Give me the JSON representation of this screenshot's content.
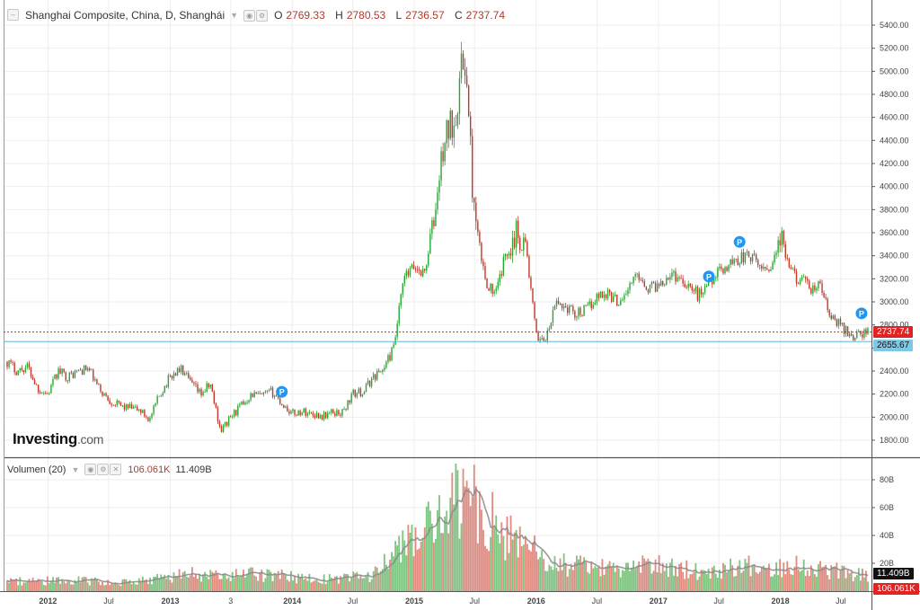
{
  "legend": {
    "symbol_title": "Shanghai Composite, China, D, Shanghái",
    "ohlc": [
      {
        "k": "O",
        "v": "2769.33"
      },
      {
        "k": "H",
        "v": "2780.53"
      },
      {
        "k": "L",
        "v": "2736.57"
      },
      {
        "k": "C",
        "v": "2737.74"
      }
    ]
  },
  "volume_legend": {
    "title": "Volumen (20)",
    "value_red": "106.061K",
    "value_dark": "11.409B"
  },
  "logo": {
    "brand": "Investing",
    "domain": ".com"
  },
  "price_tags": {
    "last": "2737.74",
    "line": "2655.67",
    "volume_ma": "11.409B",
    "volume_last": "106.061K"
  },
  "colors": {
    "up": "#26a633",
    "down": "#c0392b",
    "last_tag": "#e02424",
    "line_tag": "#7ec8e3",
    "marker": "#2196f3",
    "vol_ma": "#888888"
  },
  "chart_data": [
    {
      "type": "candlestick",
      "title": "Shanghai Composite, China, D, Shanghái",
      "ylim": [
        1600,
        5500
      ],
      "y_ticks": [
        1800,
        2000,
        2200,
        2400,
        2600,
        2800,
        3000,
        3200,
        3400,
        3600,
        3800,
        4000,
        4200,
        4400,
        4600,
        4800,
        5000,
        5200,
        5400
      ],
      "x_ticks": [
        {
          "label": "2012",
          "year_start": true
        },
        {
          "label": "Jul",
          "year_start": false
        },
        {
          "label": "2013",
          "year_start": true
        },
        {
          "label": "3",
          "year_start": false
        },
        {
          "label": "2014",
          "year_start": true
        },
        {
          "label": "Jul",
          "year_start": false
        },
        {
          "label": "2015",
          "year_start": true
        },
        {
          "label": "Jul",
          "year_start": false
        },
        {
          "label": "2016",
          "year_start": true
        },
        {
          "label": "Jul",
          "year_start": false
        },
        {
          "label": "2017",
          "year_start": true
        },
        {
          "label": "Jul",
          "year_start": false
        },
        {
          "label": "2018",
          "year_start": true
        },
        {
          "label": "Jul",
          "year_start": false
        }
      ],
      "path": [
        [
          "2011-09",
          2480
        ],
        [
          "2011-10",
          2400
        ],
        [
          "2011-11",
          2440
        ],
        [
          "2011-12",
          2250
        ],
        [
          "2012-01",
          2200
        ],
        [
          "2012-02",
          2400
        ],
        [
          "2012-03",
          2350
        ],
        [
          "2012-04",
          2400
        ],
        [
          "2012-05",
          2420
        ],
        [
          "2012-06",
          2250
        ],
        [
          "2012-07",
          2150
        ],
        [
          "2012-08",
          2100
        ],
        [
          "2012-09",
          2080
        ],
        [
          "2012-10",
          2060
        ],
        [
          "2012-11",
          1980
        ],
        [
          "2012-12",
          2200
        ],
        [
          "2013-01",
          2350
        ],
        [
          "2013-02",
          2420
        ],
        [
          "2013-03",
          2300
        ],
        [
          "2013-04",
          2200
        ],
        [
          "2013-05",
          2280
        ],
        [
          "2013-06",
          1880
        ],
        [
          "2013-07",
          2000
        ],
        [
          "2013-08",
          2100
        ],
        [
          "2013-09",
          2200
        ],
        [
          "2013-10",
          2180
        ],
        [
          "2013-11",
          2220
        ],
        [
          "2013-12",
          2120
        ],
        [
          "2014-01",
          2030
        ],
        [
          "2014-02",
          2050
        ],
        [
          "2014-03",
          2030
        ],
        [
          "2014-04",
          2010
        ],
        [
          "2014-05",
          2040
        ],
        [
          "2014-06",
          2040
        ],
        [
          "2014-07",
          2200
        ],
        [
          "2014-08",
          2220
        ],
        [
          "2014-09",
          2350
        ],
        [
          "2014-10",
          2420
        ],
        [
          "2014-11",
          2600
        ],
        [
          "2014-12",
          3200
        ],
        [
          "2015-01",
          3300
        ],
        [
          "2015-02",
          3250
        ],
        [
          "2015-03",
          3700
        ],
        [
          "2015-04",
          4400
        ],
        [
          "2015-05",
          4600
        ],
        [
          "2015-06",
          5170
        ],
        [
          "2015-07",
          3700
        ],
        [
          "2015-08",
          3200
        ],
        [
          "2015-09",
          3050
        ],
        [
          "2015-10",
          3400
        ],
        [
          "2015-11",
          3600
        ],
        [
          "2015-12",
          3500
        ],
        [
          "2016-01",
          2700
        ],
        [
          "2016-02",
          2680
        ],
        [
          "2016-03",
          3000
        ],
        [
          "2016-04",
          2950
        ],
        [
          "2016-05",
          2900
        ],
        [
          "2016-06",
          2930
        ],
        [
          "2016-07",
          3050
        ],
        [
          "2016-08",
          3080
        ],
        [
          "2016-09",
          3000
        ],
        [
          "2016-10",
          3100
        ],
        [
          "2016-11",
          3250
        ],
        [
          "2016-12",
          3120
        ],
        [
          "2017-01",
          3150
        ],
        [
          "2017-02",
          3240
        ],
        [
          "2017-03",
          3220
        ],
        [
          "2017-04",
          3150
        ],
        [
          "2017-05",
          3050
        ],
        [
          "2017-06",
          3190
        ],
        [
          "2017-07",
          3250
        ],
        [
          "2017-08",
          3330
        ],
        [
          "2017-09",
          3380
        ],
        [
          "2017-10",
          3400
        ],
        [
          "2017-11",
          3300
        ],
        [
          "2017-12",
          3300
        ],
        [
          "2018-01",
          3550
        ],
        [
          "2018-02",
          3250
        ],
        [
          "2018-03",
          3200
        ],
        [
          "2018-04",
          3100
        ],
        [
          "2018-05",
          3140
        ],
        [
          "2018-06",
          2850
        ],
        [
          "2018-07",
          2800
        ],
        [
          "2018-08",
          2700
        ],
        [
          "2018-09",
          2738
        ]
      ],
      "horizontal_lines": [
        2737.74,
        2655.67
      ],
      "markers": [
        {
          "date": "2013-12",
          "price": 2220,
          "label": "P"
        },
        {
          "date": "2017-06",
          "price": 3220,
          "label": "P"
        },
        {
          "date": "2017-09",
          "price": 3520,
          "label": "P"
        },
        {
          "date": "2018-09",
          "price": 2900,
          "label": "P"
        }
      ]
    },
    {
      "type": "bar",
      "title": "Volumen (20)",
      "ylim": [
        0,
        90
      ],
      "unit": "B",
      "y_ticks": [
        20,
        40,
        60,
        80
      ],
      "y_tick_labels": [
        "20B",
        "40B",
        "60B",
        "80B"
      ],
      "monthly_volume": [
        [
          "2011-09",
          7
        ],
        [
          "2011-12",
          7
        ],
        [
          "2012-03",
          8
        ],
        [
          "2012-06",
          7
        ],
        [
          "2012-09",
          6
        ],
        [
          "2012-12",
          9
        ],
        [
          "2013-03",
          13
        ],
        [
          "2013-06",
          10
        ],
        [
          "2013-09",
          12
        ],
        [
          "2013-12",
          11
        ],
        [
          "2014-03",
          9
        ],
        [
          "2014-06",
          9
        ],
        [
          "2014-09",
          12
        ],
        [
          "2014-12",
          32
        ],
        [
          "2015-01",
          38
        ],
        [
          "2015-03",
          48
        ],
        [
          "2015-05",
          62
        ],
        [
          "2015-06",
          70
        ],
        [
          "2015-08",
          55
        ],
        [
          "2015-10",
          40
        ],
        [
          "2015-12",
          35
        ],
        [
          "2016-02",
          20
        ],
        [
          "2016-05",
          18
        ],
        [
          "2016-09",
          15
        ],
        [
          "2016-12",
          19
        ],
        [
          "2017-03",
          16
        ],
        [
          "2017-06",
          14
        ],
        [
          "2017-09",
          19
        ],
        [
          "2017-12",
          16
        ],
        [
          "2018-02",
          20
        ],
        [
          "2018-05",
          16
        ],
        [
          "2018-08",
          13
        ],
        [
          "2018-09",
          11.4
        ]
      ]
    }
  ]
}
